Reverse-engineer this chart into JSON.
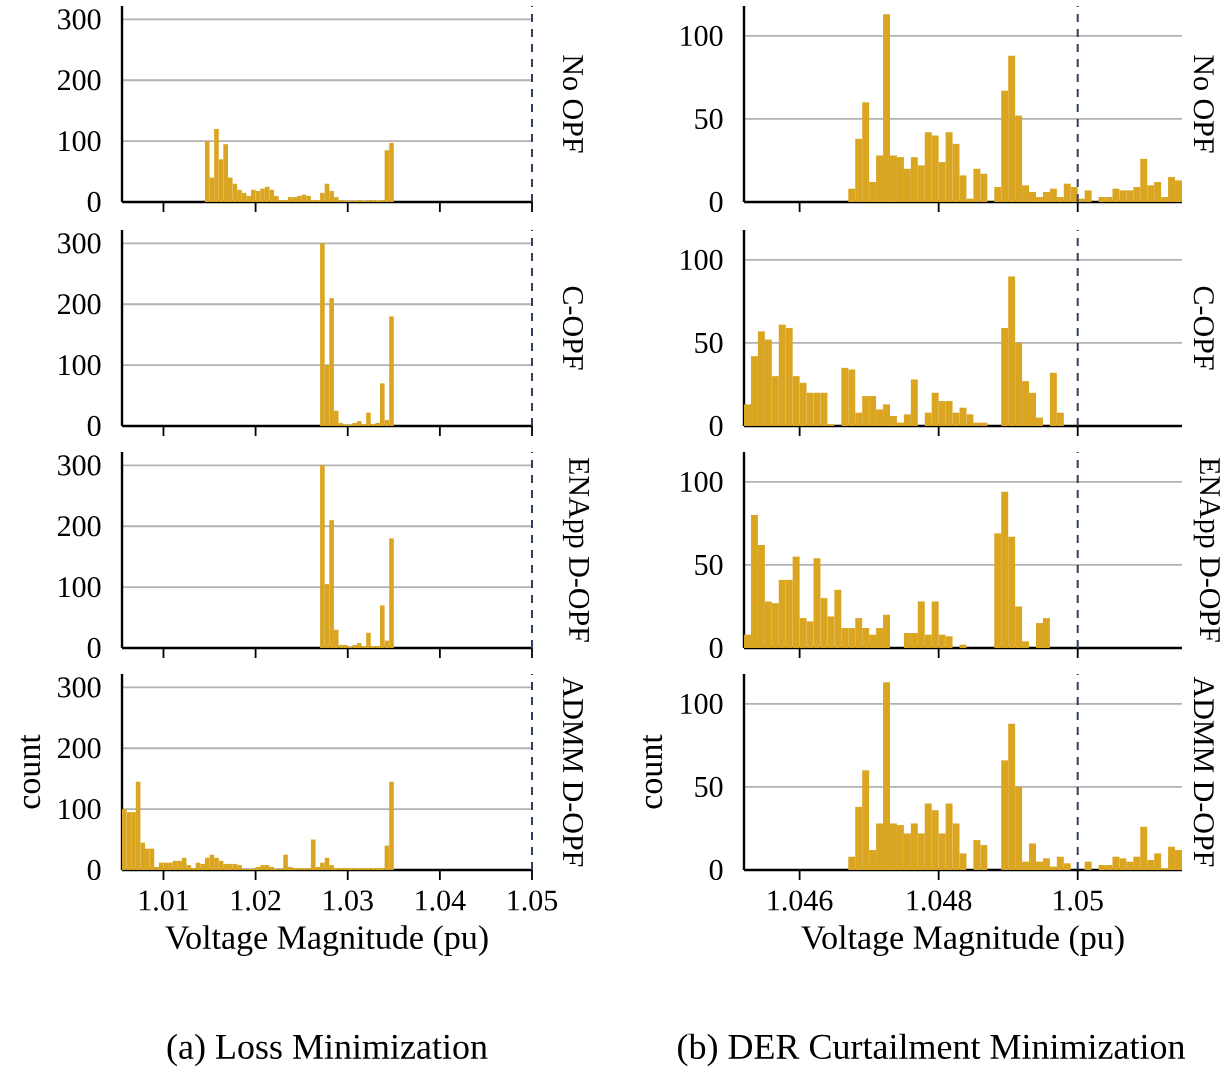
{
  "chart_data": [
    {
      "type": "histogram",
      "y2label": "No OPF",
      "color": "#daa520",
      "grid": "y",
      "tick_labels": "y",
      "xlim": [
        1.0055,
        1.05
      ],
      "ylim": [
        0,
        322
      ],
      "xticks": [
        1.01,
        1.02,
        1.03,
        1.04,
        1.05
      ],
      "yticks": [
        0,
        100,
        200,
        300
      ],
      "ref_lines": [
        {
          "axis": "x",
          "value": 1.05,
          "color": "#2f3f5f",
          "line_style": "dashed"
        }
      ],
      "bins": [
        1.0145,
        1.015,
        1.0155,
        1.016,
        1.0165,
        1.017,
        1.0175,
        1.018,
        1.0185,
        1.019,
        1.0195,
        1.02,
        1.0205,
        1.021,
        1.0215,
        1.022,
        1.0225,
        1.023,
        1.0235,
        1.024,
        1.0245,
        1.025,
        1.0255,
        1.026,
        1.0265,
        1.027,
        1.0275,
        1.028,
        1.0285,
        1.029,
        1.0295,
        1.03,
        1.0305,
        1.031,
        1.0315,
        1.032,
        1.0325,
        1.033,
        1.0335,
        1.034,
        1.0345,
        1.035
      ],
      "values": [
        100,
        40,
        120,
        70,
        95,
        40,
        30,
        20,
        15,
        10,
        20,
        18,
        22,
        25,
        20,
        10,
        3,
        3,
        8,
        8,
        10,
        12,
        10,
        3,
        3,
        15,
        30,
        18,
        8,
        3,
        2,
        2,
        2,
        3,
        2,
        3,
        3,
        2,
        3,
        85,
        97
      ]
    },
    {
      "type": "histogram",
      "y2label": "C-OPF",
      "color": "#daa520",
      "grid": "y",
      "tick_labels": "y",
      "xlim": [
        1.0055,
        1.05
      ],
      "ylim": [
        0,
        322
      ],
      "xticks": [
        1.01,
        1.02,
        1.03,
        1.04,
        1.05
      ],
      "yticks": [
        0,
        100,
        200,
        300
      ],
      "ref_lines": [
        {
          "axis": "x",
          "value": 1.05,
          "color": "#2f3f5f",
          "line_style": "dashed"
        }
      ],
      "bins": [
        1.027,
        1.0275,
        1.028,
        1.0285,
        1.029,
        1.0295,
        1.03,
        1.0305,
        1.031,
        1.0315,
        1.032,
        1.0325,
        1.033,
        1.0335,
        1.034,
        1.0345,
        1.035
      ],
      "values": [
        300,
        100,
        210,
        25,
        5,
        2,
        2,
        5,
        8,
        3,
        22,
        3,
        5,
        70,
        10,
        180
      ]
    },
    {
      "type": "histogram",
      "y2label": "ENApp D-OPF",
      "color": "#daa520",
      "grid": "y",
      "tick_labels": "y",
      "xlim": [
        1.0055,
        1.05
      ],
      "ylim": [
        0,
        322
      ],
      "xticks": [
        1.01,
        1.02,
        1.03,
        1.04,
        1.05
      ],
      "yticks": [
        0,
        100,
        200,
        300
      ],
      "ref_lines": [
        {
          "axis": "x",
          "value": 1.05,
          "color": "#2f3f5f",
          "line_style": "dashed"
        }
      ],
      "bins": [
        1.027,
        1.0275,
        1.028,
        1.0285,
        1.029,
        1.0295,
        1.03,
        1.0305,
        1.031,
        1.0315,
        1.032,
        1.0325,
        1.033,
        1.0335,
        1.034,
        1.0345,
        1.035
      ],
      "values": [
        300,
        105,
        210,
        30,
        5,
        5,
        2,
        5,
        8,
        3,
        25,
        3,
        3,
        70,
        12,
        180
      ]
    },
    {
      "type": "histogram",
      "y2label": "ADMM D-OPF",
      "xlabel": "Voltage Magnitude (pu)",
      "ylabel": "count",
      "annotations": [
        "(a) Loss Minimization"
      ],
      "color": "#daa520",
      "grid": "y",
      "xlim": [
        1.0055,
        1.05
      ],
      "ylim": [
        0,
        322
      ],
      "xticks": [
        1.01,
        1.02,
        1.03,
        1.04,
        1.05
      ],
      "yticks": [
        0,
        100,
        200,
        300
      ],
      "ref_lines": [
        {
          "axis": "x",
          "value": 1.05,
          "color": "#2f3f5f",
          "line_style": "dashed"
        }
      ],
      "bins": [
        1.0055,
        1.006,
        1.0065,
        1.007,
        1.0075,
        1.008,
        1.0085,
        1.009,
        1.0095,
        1.01,
        1.0105,
        1.011,
        1.0115,
        1.012,
        1.0125,
        1.013,
        1.0135,
        1.014,
        1.0145,
        1.015,
        1.0155,
        1.016,
        1.0165,
        1.017,
        1.0175,
        1.018,
        1.0185,
        1.019,
        1.0195,
        1.02,
        1.0205,
        1.021,
        1.0215,
        1.022,
        1.0225,
        1.023,
        1.0235,
        1.024,
        1.0245,
        1.025,
        1.0255,
        1.026,
        1.0265,
        1.027,
        1.0275,
        1.028,
        1.0285,
        1.029,
        1.0295,
        1.03,
        1.0305,
        1.031,
        1.0315,
        1.032,
        1.0325,
        1.033,
        1.0335,
        1.034,
        1.0345,
        1.035
      ],
      "values": [
        100,
        95,
        95,
        145,
        45,
        35,
        35,
        5,
        12,
        12,
        12,
        15,
        15,
        20,
        8,
        3,
        12,
        10,
        20,
        25,
        20,
        15,
        10,
        10,
        10,
        8,
        2,
        2,
        2,
        5,
        8,
        8,
        5,
        2,
        2,
        25,
        5,
        3,
        3,
        3,
        3,
        50,
        5,
        12,
        20,
        8,
        3,
        3,
        3,
        3,
        3,
        3,
        3,
        3,
        3,
        3,
        3,
        40,
        145
      ]
    },
    {
      "type": "histogram",
      "y2label": "No OPF",
      "color": "#daa520",
      "grid": "y",
      "tick_labels": "y",
      "xlim": [
        1.0452,
        1.0515
      ],
      "ylim": [
        0,
        118
      ],
      "xticks": [
        1.046,
        1.048,
        1.05
      ],
      "yticks": [
        0,
        50,
        100
      ],
      "ref_lines": [
        {
          "axis": "x",
          "value": 1.05,
          "color": "#2f3f5f",
          "line_style": "dashed"
        }
      ],
      "bins": [
        1.0467,
        1.0468,
        1.0469,
        1.047,
        1.0471,
        1.0472,
        1.0473,
        1.0474,
        1.0475,
        1.0476,
        1.0477,
        1.0478,
        1.0479,
        1.048,
        1.0481,
        1.0482,
        1.0483,
        1.0484,
        1.0485,
        1.0486,
        1.0487,
        1.0488,
        1.0489,
        1.049,
        1.0491,
        1.0492,
        1.0493,
        1.0494,
        1.0495,
        1.0496,
        1.0497,
        1.0498,
        1.0499,
        1.05,
        1.0501,
        1.0502,
        1.0503,
        1.0504,
        1.0505,
        1.0506,
        1.0507,
        1.0508,
        1.0509,
        1.051,
        1.0511,
        1.0512,
        1.0513,
        1.0514,
        1.0515
      ],
      "values": [
        8,
        38,
        60,
        12,
        28,
        113,
        28,
        27,
        20,
        27,
        22,
        42,
        40,
        24,
        42,
        35,
        16,
        2,
        20,
        17,
        0,
        9,
        67,
        88,
        52,
        10,
        6,
        3,
        6,
        8,
        3,
        11,
        9,
        2,
        7,
        0,
        3,
        3,
        8,
        7,
        7,
        9,
        26,
        10,
        12,
        3,
        15,
        13
      ]
    },
    {
      "type": "histogram",
      "y2label": "C-OPF",
      "color": "#daa520",
      "grid": "y",
      "tick_labels": "y",
      "xlim": [
        1.0452,
        1.0515
      ],
      "ylim": [
        0,
        118
      ],
      "xticks": [
        1.046,
        1.048,
        1.05
      ],
      "yticks": [
        0,
        50,
        100
      ],
      "ref_lines": [
        {
          "axis": "x",
          "value": 1.05,
          "color": "#2f3f5f",
          "line_style": "dashed"
        }
      ],
      "bins": [
        1.0452,
        1.0453,
        1.0454,
        1.0455,
        1.0456,
        1.0457,
        1.0458,
        1.0459,
        1.046,
        1.0461,
        1.0462,
        1.0463,
        1.0464,
        1.0465,
        1.0466,
        1.0467,
        1.0468,
        1.0469,
        1.047,
        1.0471,
        1.0472,
        1.0473,
        1.0474,
        1.0475,
        1.0476,
        1.0477,
        1.0478,
        1.0479,
        1.048,
        1.0481,
        1.0482,
        1.0483,
        1.0484,
        1.0485,
        1.0486,
        1.0487,
        1.0488,
        1.0489,
        1.049,
        1.0491,
        1.0492,
        1.0493,
        1.0494,
        1.0495,
        1.0496,
        1.0497,
        1.0498
      ],
      "values": [
        13,
        42,
        57,
        52,
        30,
        61,
        59,
        30,
        26,
        20,
        20,
        20,
        1,
        0,
        35,
        34,
        8,
        18,
        18,
        10,
        13,
        6,
        2,
        7,
        28,
        0,
        8,
        20,
        15,
        15,
        8,
        11,
        7,
        2,
        2,
        0,
        0,
        59,
        90,
        50,
        27,
        20,
        5,
        0,
        32,
        8
      ]
    },
    {
      "type": "histogram",
      "y2label": "ENApp D-OPF",
      "color": "#daa520",
      "grid": "y",
      "tick_labels": "y",
      "xlim": [
        1.0452,
        1.0515
      ],
      "ylim": [
        0,
        118
      ],
      "xticks": [
        1.046,
        1.048,
        1.05
      ],
      "yticks": [
        0,
        50,
        100
      ],
      "ref_lines": [
        {
          "axis": "x",
          "value": 1.05,
          "color": "#2f3f5f",
          "line_style": "dashed"
        }
      ],
      "bins": [
        1.0452,
        1.0453,
        1.0454,
        1.0455,
        1.0456,
        1.0457,
        1.0458,
        1.0459,
        1.046,
        1.0461,
        1.0462,
        1.0463,
        1.0464,
        1.0465,
        1.0466,
        1.0467,
        1.0468,
        1.0469,
        1.047,
        1.0471,
        1.0472,
        1.0473,
        1.0474,
        1.0475,
        1.0476,
        1.0477,
        1.0478,
        1.0479,
        1.048,
        1.0481,
        1.0482,
        1.0483,
        1.0484,
        1.0485,
        1.0486,
        1.0487,
        1.0488,
        1.0489,
        1.049,
        1.0491,
        1.0492,
        1.0493,
        1.0494,
        1.0495,
        1.0496
      ],
      "values": [
        8,
        80,
        62,
        28,
        27,
        41,
        41,
        55,
        18,
        16,
        54,
        30,
        19,
        35,
        12,
        12,
        18,
        12,
        8,
        12,
        20,
        0,
        0,
        9,
        9,
        28,
        8,
        28,
        8,
        7,
        0,
        2,
        0,
        0,
        0,
        0,
        69,
        94,
        67,
        25,
        4,
        0,
        15,
        18
      ]
    },
    {
      "type": "histogram",
      "y2label": "ADMM D-OPF",
      "xlabel": "Voltage Magnitude (pu)",
      "ylabel": "count",
      "annotations": [
        "(b) DER Curtailment Minimization"
      ],
      "color": "#daa520",
      "grid": "y",
      "xlim": [
        1.0452,
        1.0515
      ],
      "ylim": [
        0,
        118
      ],
      "xticks": [
        1.046,
        1.048,
        1.05
      ],
      "yticks": [
        0,
        50,
        100
      ],
      "ref_lines": [
        {
          "axis": "x",
          "value": 1.05,
          "color": "#2f3f5f",
          "line_style": "dashed"
        }
      ],
      "bins": [
        1.0467,
        1.0468,
        1.0469,
        1.047,
        1.0471,
        1.0472,
        1.0473,
        1.0474,
        1.0475,
        1.0476,
        1.0477,
        1.0478,
        1.0479,
        1.048,
        1.0481,
        1.0482,
        1.0483,
        1.0484,
        1.0485,
        1.0486,
        1.0487,
        1.0488,
        1.0489,
        1.049,
        1.0491,
        1.0492,
        1.0493,
        1.0494,
        1.0495,
        1.0496,
        1.0497,
        1.0498,
        1.0499,
        1.05,
        1.0501,
        1.0502,
        1.0503,
        1.0504,
        1.0505,
        1.0506,
        1.0507,
        1.0508,
        1.0509,
        1.051,
        1.0511,
        1.0512,
        1.0513,
        1.0514,
        1.0515
      ],
      "values": [
        8,
        38,
        60,
        12,
        28,
        113,
        28,
        27,
        22,
        28,
        22,
        40,
        36,
        22,
        40,
        28,
        10,
        0,
        18,
        15,
        0,
        0,
        66,
        88,
        50,
        5,
        16,
        5,
        7,
        2,
        8,
        4,
        0,
        0,
        5,
        0,
        3,
        3,
        8,
        7,
        5,
        8,
        26,
        6,
        10,
        1,
        14,
        12
      ]
    }
  ]
}
